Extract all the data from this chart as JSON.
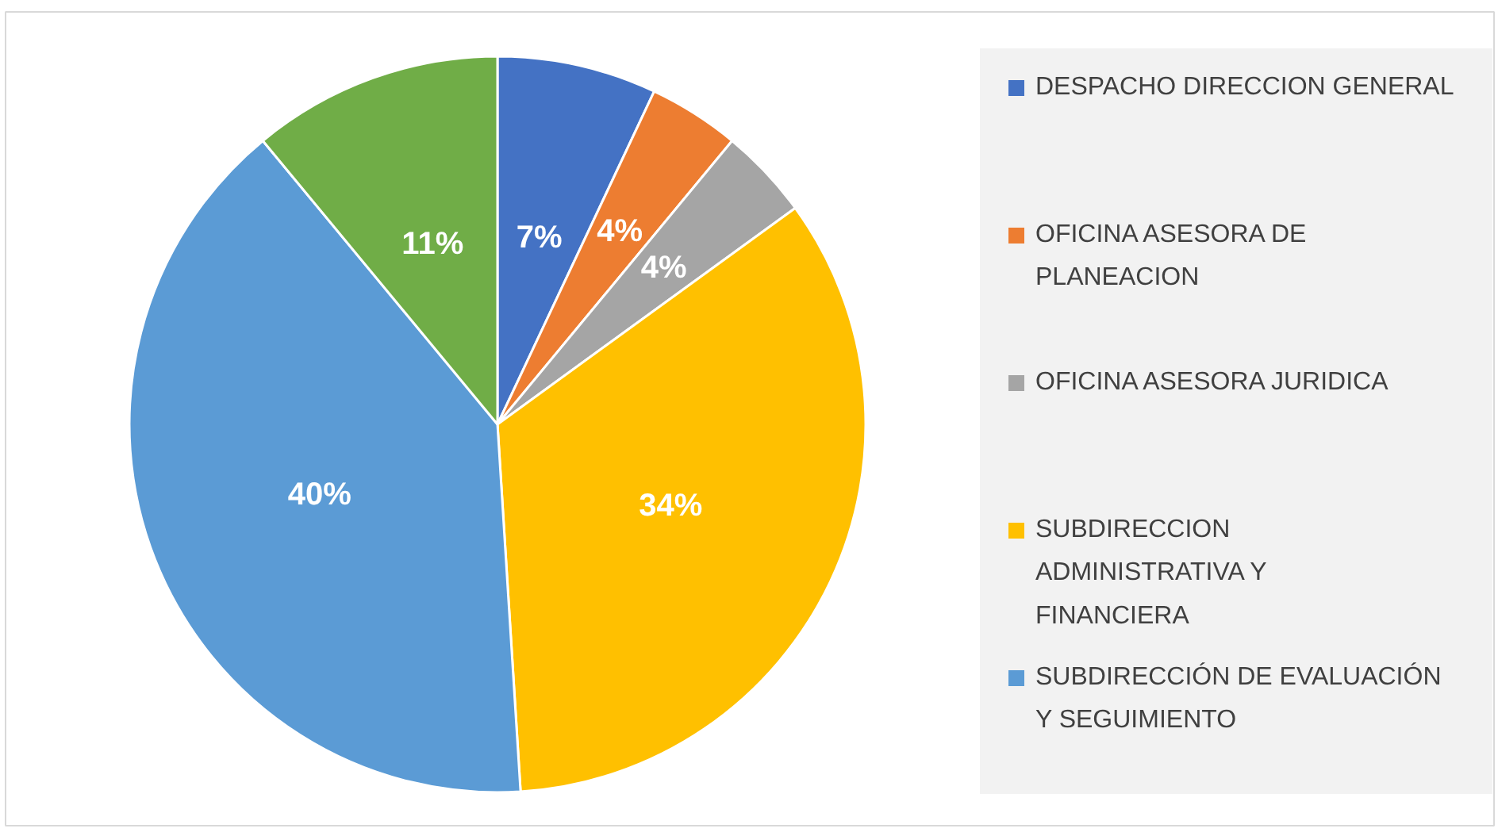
{
  "chart_data": {
    "type": "pie",
    "categories": [
      "DESPACHO DIRECCION GENERAL",
      "OFICINA ASESORA DE PLANEACION",
      "OFICINA ASESORA JURIDICA",
      "SUBDIRECCION ADMINISTRATIVA Y FINANCIERA",
      "SUBDIRECCIÓN DE EVALUACIÓN Y SEGUIMIENTO",
      null
    ],
    "values": [
      7,
      4,
      4,
      34,
      40,
      11
    ],
    "colors": [
      "#4472c4",
      "#ed7d31",
      "#a5a5a5",
      "#ffc000",
      "#5b9bd5",
      "#70ad47"
    ],
    "value_labels": [
      "7%",
      "4%",
      "4%",
      "34%",
      "40%",
      "11%"
    ],
    "legend": "right"
  }
}
